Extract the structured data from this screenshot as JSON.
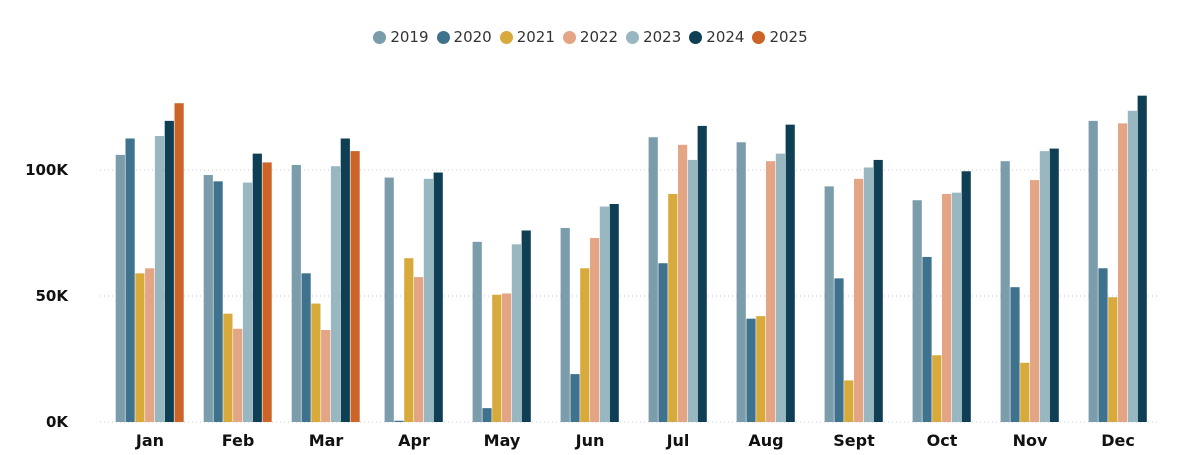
{
  "chart_data": {
    "type": "bar",
    "title": "",
    "xlabel": "",
    "ylabel": "",
    "legend_position": "top-center",
    "grid": true,
    "ylim": [
      0,
      135000
    ],
    "yticks": [
      0,
      50000,
      100000
    ],
    "ytick_labels": [
      "0K",
      "50K",
      "100K"
    ],
    "categories": [
      "Jan",
      "Feb",
      "Mar",
      "Apr",
      "May",
      "Jun",
      "Jul",
      "Aug",
      "Sept",
      "Oct",
      "Nov",
      "Dec"
    ],
    "series": [
      {
        "name": "2019",
        "color": "#7A9CAB",
        "values": [
          106000,
          98000,
          102000,
          97000,
          71500,
          77000,
          113000,
          111000,
          93500,
          88000,
          103500,
          119500
        ]
      },
      {
        "name": "2020",
        "color": "#3F728C",
        "values": [
          112500,
          95500,
          59000,
          500,
          5500,
          19000,
          63000,
          41000,
          57000,
          65500,
          53500,
          61000
        ]
      },
      {
        "name": "2021",
        "color": "#D8A93B",
        "values": [
          59000,
          43000,
          47000,
          65000,
          50500,
          61000,
          90500,
          42000,
          16500,
          26500,
          23500,
          49500
        ]
      },
      {
        "name": "2022",
        "color": "#E3A584",
        "values": [
          61000,
          37000,
          36500,
          57500,
          51000,
          73000,
          110000,
          103500,
          96500,
          90500,
          96000,
          118500
        ]
      },
      {
        "name": "2023",
        "color": "#98B7C1",
        "values": [
          113500,
          95000,
          101500,
          96500,
          70500,
          85500,
          104000,
          106500,
          101000,
          91000,
          107500,
          123500
        ]
      },
      {
        "name": "2024",
        "color": "#0E3F55",
        "values": [
          119500,
          106500,
          112500,
          99000,
          76000,
          86500,
          117500,
          118000,
          104000,
          99500,
          108500,
          129500
        ]
      },
      {
        "name": "2025",
        "color": "#CC6428",
        "values": [
          126500,
          103000,
          107500,
          null,
          null,
          null,
          null,
          null,
          null,
          null,
          null,
          null
        ]
      }
    ]
  }
}
